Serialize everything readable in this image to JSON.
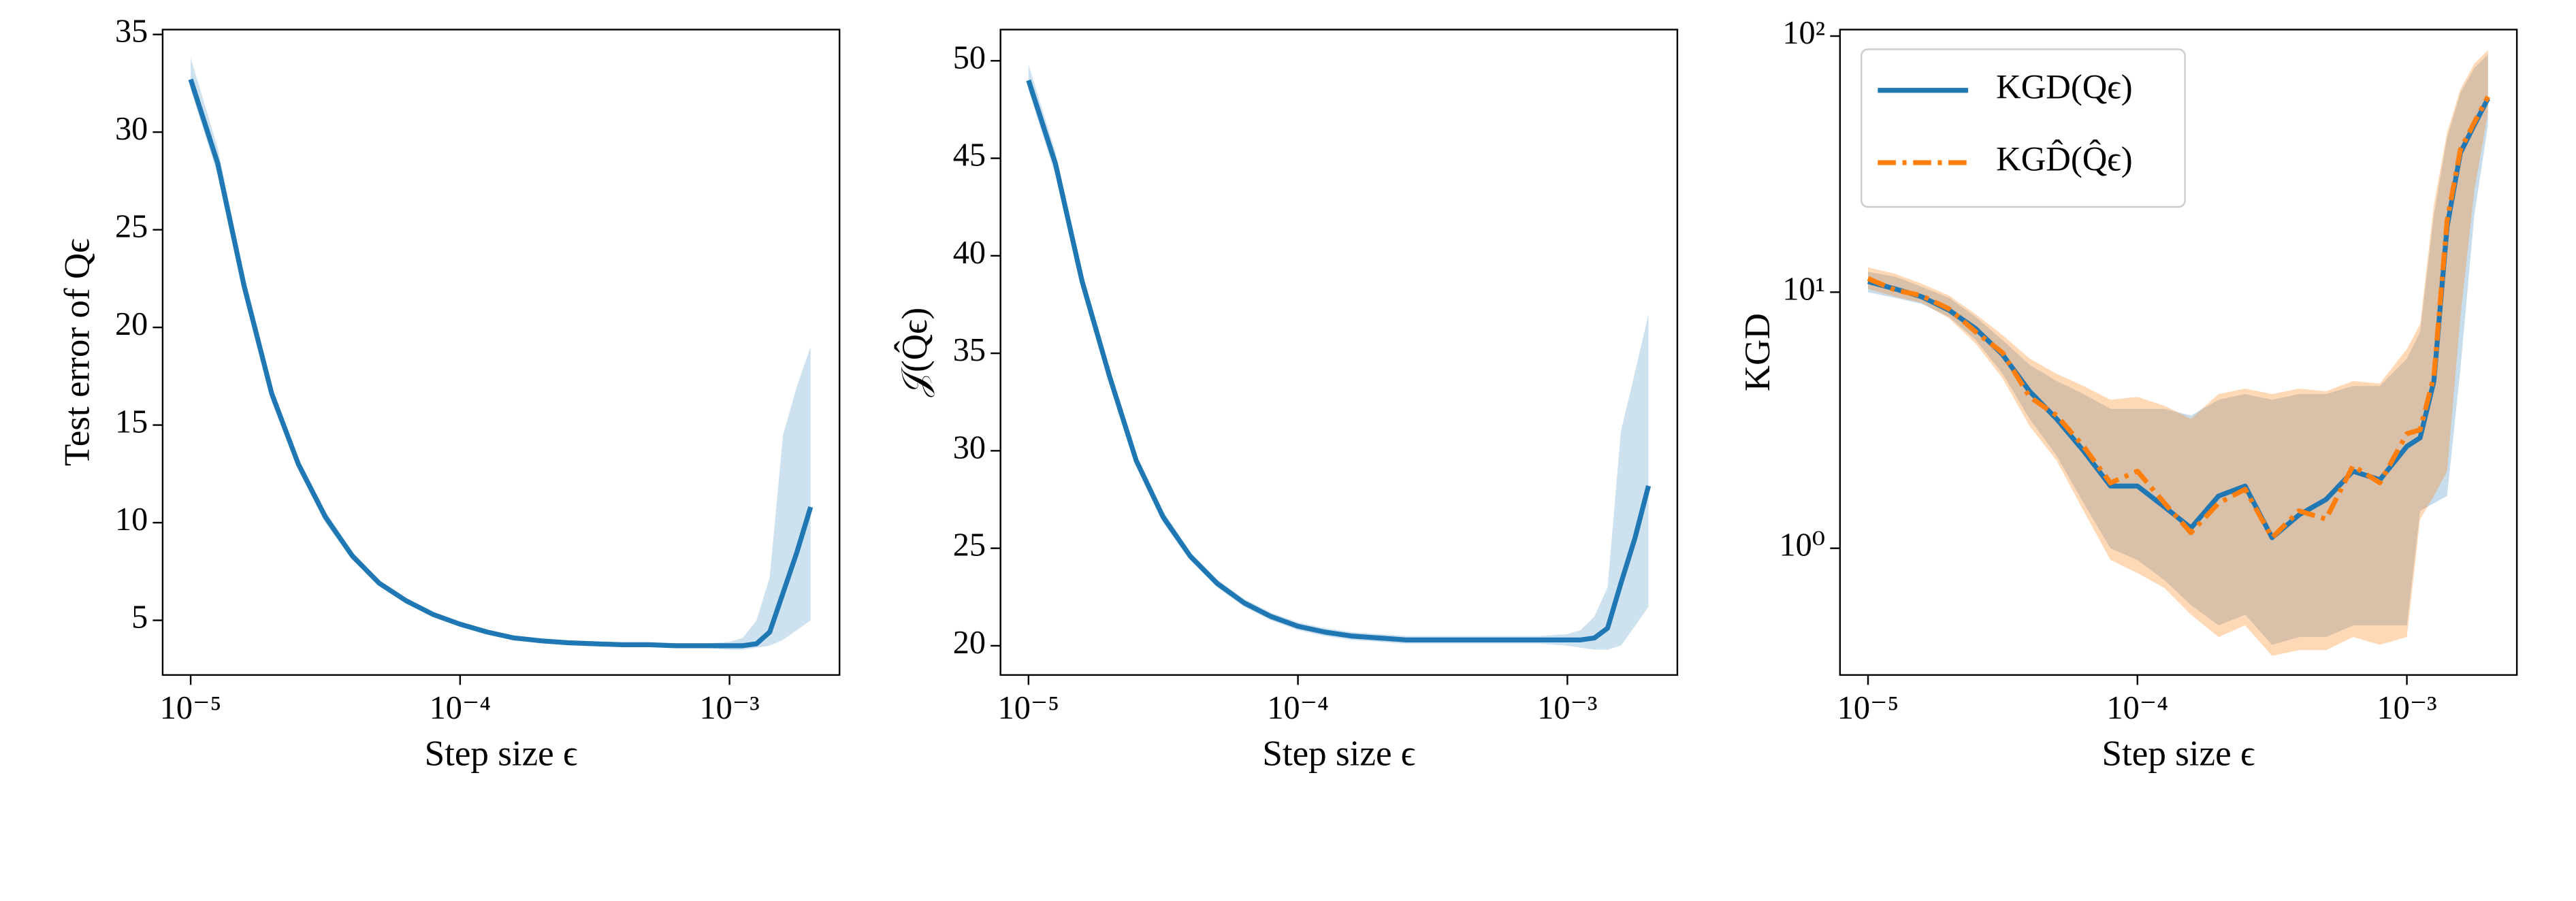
{
  "chart_data": [
    {
      "type": "line",
      "x_label": "Step size ϵ",
      "y_label": "Test error of Qϵ",
      "xscale": "log",
      "x": [
        1e-05,
        1.26e-05,
        1.58e-05,
        2e-05,
        2.51e-05,
        3.16e-05,
        3.98e-05,
        5.01e-05,
        6.31e-05,
        7.94e-05,
        0.0001,
        0.000126,
        0.000158,
        0.0002,
        0.000251,
        0.000316,
        0.000398,
        0.000501,
        0.000631,
        0.000794,
        0.001,
        0.00112,
        0.00126,
        0.00141,
        0.00158,
        0.00178,
        0.002
      ],
      "series": [
        {
          "color": "#1f77b4",
          "values": [
            32.7,
            28.4,
            22.1,
            16.6,
            13.0,
            10.3,
            8.3,
            6.9,
            6.0,
            5.3,
            4.8,
            4.4,
            4.1,
            3.95,
            3.85,
            3.8,
            3.75,
            3.75,
            3.7,
            3.7,
            3.7,
            3.7,
            3.8,
            4.4,
            6.4,
            8.5,
            10.8
          ],
          "lower": [
            32.2,
            27.8,
            21.6,
            16.2,
            12.7,
            10.0,
            8.1,
            6.75,
            5.85,
            5.2,
            4.7,
            4.3,
            4.0,
            3.85,
            3.75,
            3.7,
            3.65,
            3.65,
            3.6,
            3.6,
            3.5,
            3.5,
            3.6,
            3.7,
            4.0,
            4.5,
            5.0
          ],
          "upper": [
            33.8,
            29.2,
            22.7,
            17.0,
            13.3,
            10.6,
            8.5,
            7.05,
            6.15,
            5.4,
            4.9,
            4.5,
            4.2,
            4.05,
            3.95,
            3.9,
            3.85,
            3.85,
            3.8,
            3.8,
            3.9,
            4.1,
            5.0,
            7.2,
            14.5,
            17.0,
            19.0
          ]
        }
      ],
      "xlim": [
        7.87e-06,
        0.00256
      ],
      "xticks": [
        {
          "value": 1e-05,
          "label": "10⁻⁵"
        },
        {
          "value": 0.0001,
          "label": "10⁻⁴"
        },
        {
          "value": 0.001,
          "label": "10⁻³"
        }
      ],
      "ylim": [
        2.2,
        35.25
      ],
      "yticks": [
        5,
        10,
        15,
        20,
        25,
        30,
        35
      ]
    },
    {
      "type": "line",
      "x_label": "Step size ϵ",
      "y_label": "𝒥(Q̂ϵ)",
      "xscale": "log",
      "x": [
        1e-05,
        1.26e-05,
        1.58e-05,
        2e-05,
        2.51e-05,
        3.16e-05,
        3.98e-05,
        5.01e-05,
        6.31e-05,
        7.94e-05,
        0.0001,
        0.000126,
        0.000158,
        0.0002,
        0.000251,
        0.000316,
        0.000398,
        0.000501,
        0.000631,
        0.000794,
        0.001,
        0.00112,
        0.00126,
        0.00141,
        0.00158,
        0.00178,
        0.002
      ],
      "series": [
        {
          "color": "#1f77b4",
          "values": [
            49.0,
            44.7,
            38.7,
            33.8,
            29.5,
            26.6,
            24.6,
            23.2,
            22.2,
            21.5,
            21.0,
            20.7,
            20.5,
            20.4,
            20.3,
            20.3,
            20.3,
            20.3,
            20.3,
            20.3,
            20.3,
            20.3,
            20.4,
            20.9,
            23.2,
            25.5,
            28.2
          ],
          "lower": [
            48.5,
            44.1,
            38.2,
            33.4,
            29.2,
            26.3,
            24.4,
            23.0,
            22.0,
            21.3,
            20.8,
            20.5,
            20.3,
            20.2,
            20.1,
            20.1,
            20.1,
            20.1,
            20.1,
            20.1,
            20.0,
            19.9,
            19.8,
            19.8,
            20.0,
            21.0,
            22.0
          ],
          "upper": [
            49.8,
            45.3,
            39.2,
            34.2,
            29.8,
            26.9,
            24.8,
            23.4,
            22.4,
            21.7,
            21.2,
            20.9,
            20.7,
            20.6,
            20.5,
            20.5,
            20.5,
            20.5,
            20.5,
            20.5,
            20.6,
            20.8,
            21.5,
            23.0,
            31.0,
            34.0,
            37.0
          ]
        }
      ],
      "xlim": [
        7.87e-06,
        0.00256
      ],
      "xticks": [
        {
          "value": 1e-05,
          "label": "10⁻⁵"
        },
        {
          "value": 0.0001,
          "label": "10⁻⁴"
        },
        {
          "value": 0.001,
          "label": "10⁻³"
        }
      ],
      "ylim": [
        18.5,
        51.6
      ],
      "yticks": [
        20,
        25,
        30,
        35,
        40,
        45,
        50
      ]
    },
    {
      "type": "line",
      "x_label": "Step size ϵ",
      "y_label": "KGD",
      "xscale": "log",
      "yscale": "log",
      "legend": "upper left",
      "x": [
        1e-05,
        1.26e-05,
        1.58e-05,
        2e-05,
        2.51e-05,
        3.16e-05,
        3.98e-05,
        5.01e-05,
        6.31e-05,
        7.94e-05,
        0.0001,
        0.000126,
        0.000158,
        0.0002,
        0.000251,
        0.000316,
        0.000398,
        0.000501,
        0.000631,
        0.000794,
        0.001,
        0.00112,
        0.00126,
        0.00141,
        0.00158,
        0.00178,
        0.002
      ],
      "series": [
        {
          "name": "KGD(Qϵ)",
          "color": "#1f77b4",
          "dash": "solid",
          "values": [
            11,
            10.3,
            9.6,
            8.5,
            7.2,
            5.7,
            4.1,
            3.2,
            2.4,
            1.75,
            1.75,
            1.45,
            1.2,
            1.6,
            1.75,
            1.1,
            1.35,
            1.55,
            2.0,
            1.85,
            2.5,
            2.7,
            4.5,
            18,
            35,
            45,
            57
          ],
          "lower": [
            10,
            9.5,
            9,
            8,
            6.5,
            4.8,
            3.2,
            2.3,
            1.5,
            1.0,
            0.9,
            0.75,
            0.6,
            0.5,
            0.55,
            0.42,
            0.45,
            0.45,
            0.5,
            0.5,
            0.5,
            1.4,
            1.5,
            1.6,
            5,
            20,
            45
          ],
          "upper": [
            12,
            11.5,
            10.5,
            9.5,
            8,
            6.5,
            5.2,
            4.5,
            4,
            3.5,
            3.5,
            3.5,
            3.3,
            3.8,
            4,
            3.8,
            4,
            4,
            4.3,
            4.3,
            5.5,
            7,
            20,
            40,
            60,
            75,
            85
          ]
        },
        {
          "name": "KGD̂(Q̂ϵ)",
          "color": "#ff7f0e",
          "dash": "dashdot",
          "values": [
            11.3,
            10.2,
            9.7,
            8.6,
            7.0,
            5.8,
            3.9,
            3.3,
            2.5,
            1.8,
            2.0,
            1.5,
            1.15,
            1.5,
            1.7,
            1.1,
            1.4,
            1.3,
            2.1,
            1.8,
            2.8,
            2.9,
            4.7,
            19,
            36,
            46,
            58
          ],
          "lower": [
            10.3,
            9.6,
            9.1,
            7.9,
            6.3,
            4.6,
            3.0,
            2.2,
            1.4,
            0.9,
            0.8,
            0.7,
            0.55,
            0.45,
            0.5,
            0.38,
            0.4,
            0.4,
            0.45,
            0.42,
            0.45,
            1.3,
            1.6,
            2,
            8,
            25,
            50
          ],
          "upper": [
            12.5,
            11.8,
            10.8,
            9.7,
            8.2,
            6.8,
            5.5,
            4.8,
            4.3,
            3.8,
            3.9,
            3.6,
            3.2,
            4.0,
            4.2,
            4.0,
            4.2,
            4.1,
            4.5,
            4.4,
            6,
            7.5,
            22,
            42,
            62,
            78,
            88
          ]
        }
      ],
      "xlim": [
        7.87e-06,
        0.00256
      ],
      "xticks": [
        {
          "value": 1e-05,
          "label": "10⁻⁵"
        },
        {
          "value": 0.0001,
          "label": "10⁻⁴"
        },
        {
          "value": 0.001,
          "label": "10⁻³"
        }
      ],
      "ylim": [
        0.32,
        106
      ],
      "yticks": [
        {
          "value": 1,
          "label": "10⁰"
        },
        {
          "value": 10,
          "label": "10¹"
        },
        {
          "value": 100,
          "label": "10²"
        }
      ]
    }
  ]
}
